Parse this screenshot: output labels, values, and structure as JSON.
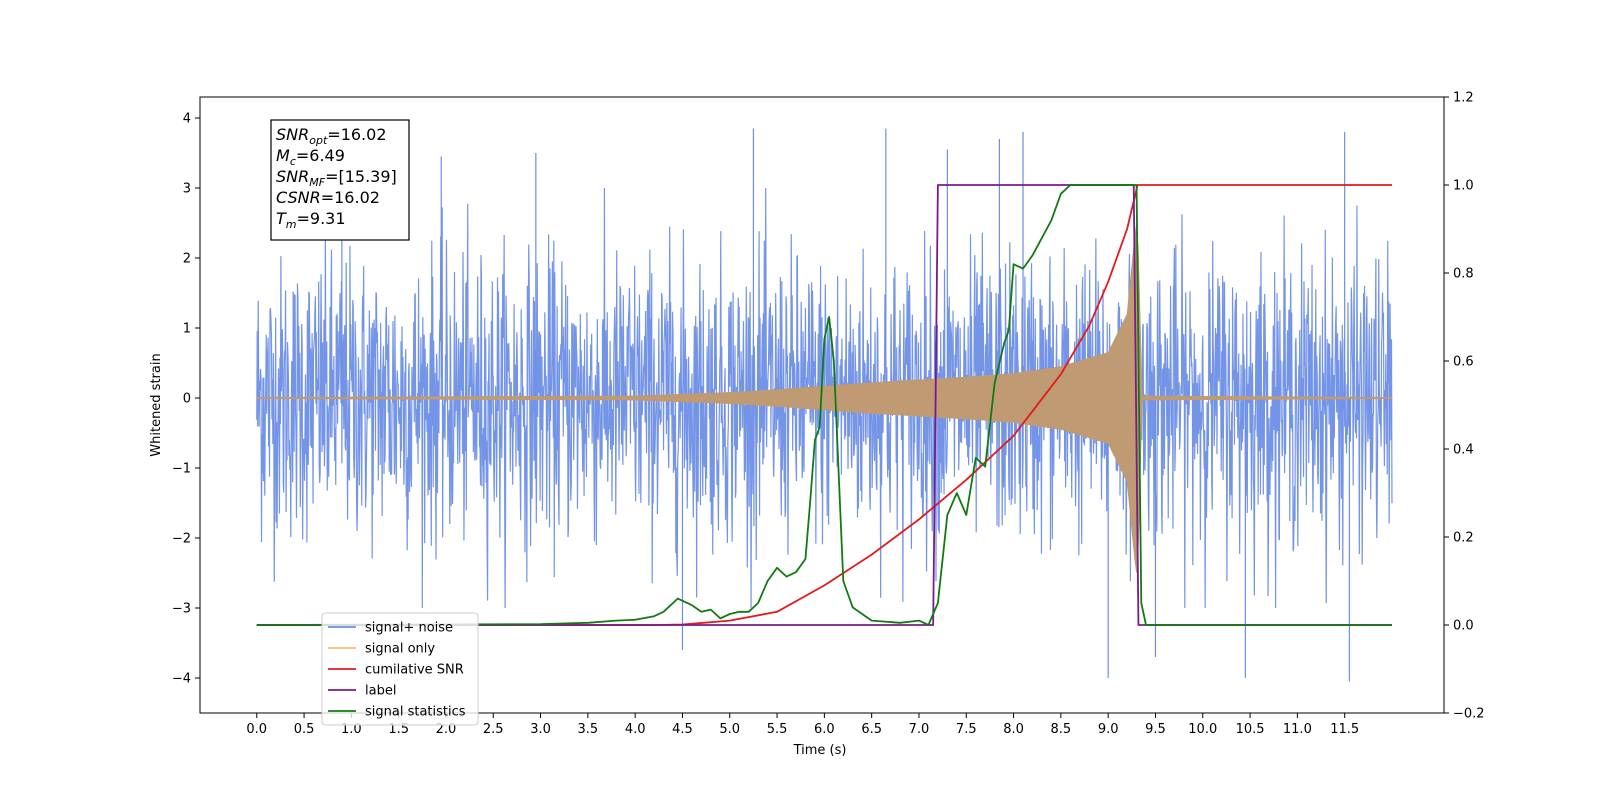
{
  "chart_data": {
    "type": "line",
    "xlabel": "Time (s)",
    "ylabel": "Whitened strain",
    "xlim": [
      -0.6,
      12.55
    ],
    "ylim": [
      -4.5,
      4.3
    ],
    "y2lim": [
      -0.2,
      1.2
    ],
    "x_ticks": [
      "0.0",
      "0.5",
      "1.0",
      "1.5",
      "2.0",
      "2.5",
      "3.0",
      "3.5",
      "4.0",
      "4.5",
      "5.0",
      "5.5",
      "6.0",
      "6.5",
      "7.0",
      "7.5",
      "8.0",
      "8.5",
      "9.0",
      "9.5",
      "10.0",
      "10.5",
      "11.0",
      "11.5"
    ],
    "y_ticks": [
      "4",
      "3",
      "2",
      "1",
      "0",
      "−1",
      "−2",
      "−3",
      "−4"
    ],
    "y2_ticks": [
      "1.2",
      "1.0",
      "0.8",
      "0.6",
      "0.4",
      "0.2",
      "0.0",
      "−0.2"
    ],
    "annotation": {
      "lines": [
        {
          "base": "SNR",
          "sub": "opt",
          "value": "=16.02"
        },
        {
          "base": "M",
          "sub": "c",
          "value": "=6.49"
        },
        {
          "base": "SNR",
          "sub": "MF",
          "value": "=[15.39]"
        },
        {
          "base": "CSNR",
          "sub": "",
          "value": "=16.02"
        },
        {
          "base": "T",
          "sub": "m",
          "value": "=9.31"
        }
      ]
    },
    "legend": {
      "placement": "lower-left",
      "entries": [
        "signal+ noise",
        "signal only",
        "cumilative SNR",
        "label",
        "signal statistics"
      ]
    },
    "series": [
      {
        "name": "signal+ noise",
        "axis": "left",
        "color": "#6d8ee6",
        "x_range": [
          0.0,
          12.0
        ],
        "noise_std": 1.0,
        "extremes": [
          [
            0.9,
            3.5
          ],
          [
            1.95,
            3.45
          ],
          [
            2.95,
            3.5
          ],
          [
            4.5,
            -3.6
          ],
          [
            5.25,
            3.85
          ],
          [
            6.65,
            3.85
          ],
          [
            7.3,
            3.55
          ],
          [
            7.85,
            3.7
          ],
          [
            8.1,
            3.8
          ],
          [
            9.5,
            -3.7
          ],
          [
            10.45,
            -4.0
          ],
          [
            11.5,
            3.8
          ],
          [
            11.55,
            -4.05
          ],
          [
            9.0,
            -4.0
          ]
        ]
      },
      {
        "name": "signal only",
        "axis": "left",
        "color": "#bf9a72",
        "x_range": [
          0.0,
          12.0
        ],
        "merger_time": 9.31,
        "envelope": [
          [
            0.0,
            0.01
          ],
          [
            4.0,
            0.03
          ],
          [
            5.0,
            0.08
          ],
          [
            5.5,
            0.12
          ],
          [
            6.0,
            0.17
          ],
          [
            6.5,
            0.22
          ],
          [
            7.0,
            0.26
          ],
          [
            7.5,
            0.3
          ],
          [
            8.0,
            0.35
          ],
          [
            8.5,
            0.45
          ],
          [
            9.0,
            0.65
          ],
          [
            9.2,
            1.2
          ],
          [
            9.28,
            2.3
          ],
          [
            9.31,
            2.6
          ],
          [
            9.36,
            0.03
          ],
          [
            12.0,
            0.01
          ]
        ]
      },
      {
        "name": "cumilative SNR",
        "axis": "right",
        "color": "#e31a1c",
        "points": [
          [
            0.0,
            0.0
          ],
          [
            4.2,
            0.0
          ],
          [
            4.5,
            0.001
          ],
          [
            5.0,
            0.01
          ],
          [
            5.5,
            0.03
          ],
          [
            6.0,
            0.09
          ],
          [
            6.5,
            0.16
          ],
          [
            7.0,
            0.24
          ],
          [
            7.5,
            0.33
          ],
          [
            8.0,
            0.43
          ],
          [
            8.5,
            0.57
          ],
          [
            8.8,
            0.68
          ],
          [
            9.0,
            0.78
          ],
          [
            9.2,
            0.9
          ],
          [
            9.3,
            0.99
          ],
          [
            9.31,
            1.0
          ],
          [
            12.0,
            1.0
          ]
        ],
        "style": "step-after-merger"
      },
      {
        "name": "label",
        "axis": "right",
        "color": "#7b1a8a",
        "points": [
          [
            0.0,
            0.0
          ],
          [
            7.15,
            0.0
          ],
          [
            7.2,
            1.0
          ],
          [
            9.27,
            1.0
          ],
          [
            9.32,
            0.0
          ],
          [
            12.0,
            0.0
          ]
        ]
      },
      {
        "name": "signal statistics",
        "axis": "right",
        "color": "#127a12",
        "points": [
          [
            0.0,
            0.0
          ],
          [
            3.0,
            0.002
          ],
          [
            3.5,
            0.005
          ],
          [
            3.8,
            0.01
          ],
          [
            4.0,
            0.012
          ],
          [
            4.2,
            0.02
          ],
          [
            4.3,
            0.03
          ],
          [
            4.45,
            0.06
          ],
          [
            4.6,
            0.045
          ],
          [
            4.7,
            0.03
          ],
          [
            4.8,
            0.035
          ],
          [
            4.9,
            0.015
          ],
          [
            5.0,
            0.025
          ],
          [
            5.1,
            0.03
          ],
          [
            5.2,
            0.03
          ],
          [
            5.3,
            0.05
          ],
          [
            5.4,
            0.1
          ],
          [
            5.5,
            0.13
          ],
          [
            5.6,
            0.11
          ],
          [
            5.7,
            0.12
          ],
          [
            5.8,
            0.15
          ],
          [
            5.85,
            0.28
          ],
          [
            5.9,
            0.42
          ],
          [
            5.95,
            0.45
          ],
          [
            6.0,
            0.65
          ],
          [
            6.05,
            0.7
          ],
          [
            6.1,
            0.6
          ],
          [
            6.15,
            0.35
          ],
          [
            6.2,
            0.1
          ],
          [
            6.3,
            0.04
          ],
          [
            6.5,
            0.01
          ],
          [
            6.8,
            0.005
          ],
          [
            7.0,
            0.01
          ],
          [
            7.1,
            0.0
          ],
          [
            7.2,
            0.05
          ],
          [
            7.3,
            0.25
          ],
          [
            7.4,
            0.3
          ],
          [
            7.5,
            0.25
          ],
          [
            7.6,
            0.38
          ],
          [
            7.7,
            0.36
          ],
          [
            7.8,
            0.55
          ],
          [
            7.9,
            0.64
          ],
          [
            7.95,
            0.67
          ],
          [
            8.0,
            0.82
          ],
          [
            8.1,
            0.81
          ],
          [
            8.2,
            0.84
          ],
          [
            8.3,
            0.88
          ],
          [
            8.4,
            0.92
          ],
          [
            8.5,
            0.98
          ],
          [
            8.6,
            1.0
          ],
          [
            9.3,
            1.0
          ],
          [
            9.35,
            0.05
          ],
          [
            9.4,
            0.0
          ],
          [
            12.0,
            0.0
          ]
        ]
      }
    ]
  }
}
